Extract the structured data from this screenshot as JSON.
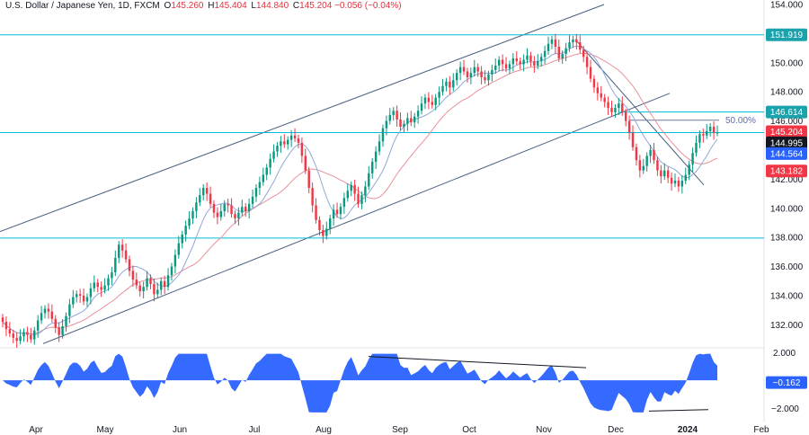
{
  "header": {
    "symbol_title": "U.S. Dollar / Japanese Yen, 1D, FXCM",
    "o_key": "O",
    "o_val": "145.260",
    "h_key": "H",
    "h_val": "145.404",
    "l_key": "L",
    "l_val": "144.840",
    "c_key": "C",
    "c_val": "145.204",
    "change": "−0.056 (−0.04%)"
  },
  "colors": {
    "up": "#089981",
    "down": "#f23645",
    "hline": "#00bcd4",
    "channel": "#4a6080",
    "ma_fast": "#8fa8d8",
    "ma_slow": "#e8909a",
    "osc": "#2962ff",
    "label_teal": "#1aa3ad",
    "label_blue": "#2962ff",
    "label_red": "#f23645",
    "label_dark": "#131722"
  },
  "chart_data": {
    "type": "candlestick",
    "title": "U.S. Dollar / Japanese Yen, 1D, FXCM",
    "y_axis_ticks": [
      "154.000",
      "152.000",
      "150.000",
      "148.000",
      "146.000",
      "144.000",
      "142.000",
      "140.000",
      "138.000",
      "136.000",
      "134.000",
      "132.000"
    ],
    "ylim": [
      130.6,
      154.0
    ],
    "x_axis_ticks": [
      "Apr",
      "May",
      "Jun",
      "Jul",
      "Aug",
      "Sep",
      "Oct",
      "Nov",
      "Dec",
      "2024",
      "Feb"
    ],
    "horizontal_levels": [
      151.919,
      146.614,
      145.204,
      137.957
    ],
    "price_labels": [
      {
        "value": "151.919",
        "kind": "teal",
        "y": 151.919
      },
      {
        "value": "146.614",
        "kind": "teal",
        "y": 146.614
      },
      {
        "value": "145.204",
        "kind": "red",
        "y": 145.204
      },
      {
        "value": "144.995",
        "kind": "dark",
        "y": 144.995
      },
      {
        "value": "144.564",
        "kind": "blue",
        "y": 144.564
      },
      {
        "value": "143.182",
        "kind": "red",
        "y": 143.182
      }
    ],
    "fib_label": "50.00%",
    "fib_level": 146.05,
    "closes": [
      132.2,
      131.7,
      131.4,
      131.1,
      130.9,
      131.2,
      131.5,
      131.3,
      131.0,
      131.6,
      132.3,
      132.8,
      133.1,
      132.9,
      132.4,
      131.8,
      131.3,
      131.9,
      132.6,
      133.4,
      133.9,
      134.1,
      134.0,
      133.6,
      133.9,
      134.5,
      134.9,
      134.6,
      134.4,
      134.7,
      135.2,
      135.6,
      136.6,
      137.5,
      137.1,
      136.5,
      135.7,
      135.1,
      134.7,
      134.3,
      134.6,
      135.2,
      134.8,
      134.1,
      134.4,
      135.0,
      134.6,
      135.4,
      136.0,
      136.8,
      137.6,
      138.2,
      138.8,
      139.3,
      139.8,
      140.4,
      140.9,
      141.4,
      141.0,
      140.3,
      139.7,
      139.4,
      139.8,
      140.3,
      140.2,
      139.6,
      139.3,
      139.7,
      140.1,
      139.8,
      140.3,
      140.8,
      141.4,
      141.8,
      142.3,
      142.8,
      143.4,
      143.9,
      144.3,
      144.6,
      144.4,
      144.7,
      145.0,
      144.8,
      144.5,
      143.6,
      142.6,
      141.4,
      140.2,
      139.2,
      138.5,
      138.1,
      138.6,
      139.3,
      139.9,
      139.6,
      140.1,
      140.7,
      141.2,
      141.6,
      141.0,
      140.3,
      140.9,
      141.5,
      142.4,
      143.2,
      143.9,
      144.6,
      145.5,
      146.0,
      146.4,
      146.7,
      146.1,
      145.6,
      145.8,
      146.2,
      145.9,
      146.3,
      146.7,
      147.2,
      147.6,
      147.3,
      147.1,
      147.6,
      148.0,
      148.4,
      148.7,
      148.3,
      148.8,
      149.3,
      149.7,
      149.4,
      149.0,
      149.3,
      149.7,
      149.4,
      149.0,
      148.8,
      149.2,
      149.5,
      149.8,
      150.2,
      149.9,
      149.6,
      149.9,
      150.3,
      150.1,
      149.9,
      150.2,
      150.5,
      150.1,
      149.8,
      150.1,
      150.4,
      150.8,
      151.3,
      151.6,
      151.1,
      150.3,
      150.6,
      151.0,
      151.4,
      151.6,
      151.4,
      150.9,
      150.4,
      149.7,
      148.9,
      148.3,
      147.9,
      147.6,
      147.3,
      146.9,
      146.6,
      146.9,
      147.2,
      146.6,
      146.0,
      145.2,
      144.2,
      143.3,
      142.6,
      142.9,
      143.6,
      144.0,
      143.3,
      142.6,
      142.2,
      142.6,
      142.1,
      141.7,
      141.9,
      141.5,
      141.9,
      142.3,
      143.0,
      143.8,
      144.5,
      145.1,
      145.0,
      145.3,
      145.6,
      145.2,
      145.2
    ],
    "oscillator": {
      "ticks": [
        "2.000",
        "−2.000"
      ],
      "current_label": "−0.162",
      "ylim": [
        -2.5,
        2.0
      ],
      "current": -0.162
    }
  }
}
